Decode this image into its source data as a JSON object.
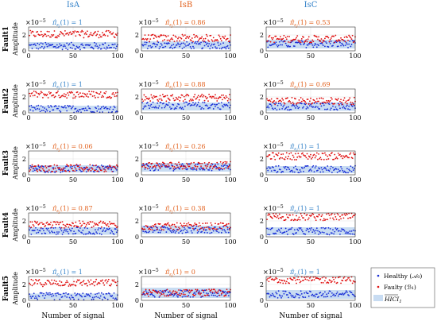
{
  "colors": {
    "healthy": "#1a2fd6",
    "faulty": "#e01010",
    "band": "#c8dcf2",
    "title_blue": "#2f7fc7",
    "title_orange": "#e2601c",
    "axis": "#333333",
    "grid": "#e2e2e2"
  },
  "columns": [
    "IsA",
    "IsB",
    "IsC"
  ],
  "rows": [
    "Fault1",
    "Fault2",
    "Fault3",
    "Fault4",
    "Fault5"
  ],
  "ylabel": "Amplitude",
  "xlabel": "Number of signal",
  "exponent": "×10",
  "exponent_power": "−5",
  "pi_label": "π̂",
  "pi_sub": "ε",
  "pi_subsub": "j",
  "pi_arg": "(1) = ",
  "legend": {
    "healthy": "Healthy (𝒜₀)",
    "faulty": "Faulty (ℬ₁)",
    "band": "HICI",
    "band_sub": "1"
  },
  "chart_data": {
    "type": "scatter",
    "xlim": [
      0,
      100
    ],
    "ylim": [
      0,
      3
    ],
    "xticks": [
      0,
      50,
      100
    ],
    "yticks": [
      0,
      2
    ],
    "grid": true,
    "panels": [
      {
        "row": 0,
        "col": 0,
        "pi": "1",
        "pi_color": "blue",
        "healthy_mean": 0.6,
        "faulty_mean": 2.1,
        "band": [
          0.25,
          1.1
        ]
      },
      {
        "row": 0,
        "col": 1,
        "pi": "0.86",
        "pi_color": "orange",
        "healthy_mean": 0.7,
        "faulty_mean": 1.6,
        "band": [
          0.25,
          1.2
        ]
      },
      {
        "row": 0,
        "col": 2,
        "pi": "0.53",
        "pi_color": "orange",
        "healthy_mean": 0.85,
        "faulty_mean": 1.5,
        "band": [
          0.3,
          1.4
        ]
      },
      {
        "row": 1,
        "col": 0,
        "pi": "1",
        "pi_color": "blue",
        "healthy_mean": 0.5,
        "faulty_mean": 2.3,
        "band": [
          0.15,
          0.9
        ]
      },
      {
        "row": 1,
        "col": 1,
        "pi": "0.88",
        "pi_color": "orange",
        "healthy_mean": 0.9,
        "faulty_mean": 1.9,
        "band": [
          0.3,
          1.3
        ]
      },
      {
        "row": 1,
        "col": 2,
        "pi": "0.69",
        "pi_color": "orange",
        "healthy_mean": 0.8,
        "faulty_mean": 1.5,
        "band": [
          0.25,
          1.3
        ]
      },
      {
        "row": 2,
        "col": 0,
        "pi": "0.06",
        "pi_color": "orange",
        "healthy_mean": 0.75,
        "faulty_mean": 0.85,
        "band": [
          0.3,
          1.2
        ]
      },
      {
        "row": 2,
        "col": 1,
        "pi": "0.26",
        "pi_color": "orange",
        "healthy_mean": 0.95,
        "faulty_mean": 1.2,
        "band": [
          0.4,
          1.5
        ]
      },
      {
        "row": 2,
        "col": 2,
        "pi": "1",
        "pi_color": "blue",
        "healthy_mean": 0.7,
        "faulty_mean": 2.35,
        "band": [
          0.2,
          1.1
        ]
      },
      {
        "row": 3,
        "col": 0,
        "pi": "0.87",
        "pi_color": "orange",
        "healthy_mean": 0.75,
        "faulty_mean": 1.55,
        "band": [
          0.25,
          1.2
        ]
      },
      {
        "row": 3,
        "col": 1,
        "pi": "0.38",
        "pi_color": "orange",
        "healthy_mean": 0.9,
        "faulty_mean": 1.3,
        "band": [
          0.35,
          1.4
        ]
      },
      {
        "row": 3,
        "col": 2,
        "pi": "1",
        "pi_color": "blue",
        "healthy_mean": 0.7,
        "faulty_mean": 2.5,
        "band": [
          0.2,
          1.2
        ]
      },
      {
        "row": 4,
        "col": 0,
        "pi": "1",
        "pi_color": "blue",
        "healthy_mean": 0.5,
        "faulty_mean": 2.2,
        "band": [
          0.15,
          0.85
        ]
      },
      {
        "row": 4,
        "col": 1,
        "pi": "0",
        "pi_color": "orange",
        "healthy_mean": 0.85,
        "faulty_mean": 0.95,
        "band": [
          0.3,
          1.6
        ]
      },
      {
        "row": 4,
        "col": 2,
        "pi": "1",
        "pi_color": "blue",
        "healthy_mean": 0.75,
        "faulty_mean": 2.6,
        "band": [
          0.2,
          1.3
        ]
      }
    ]
  }
}
